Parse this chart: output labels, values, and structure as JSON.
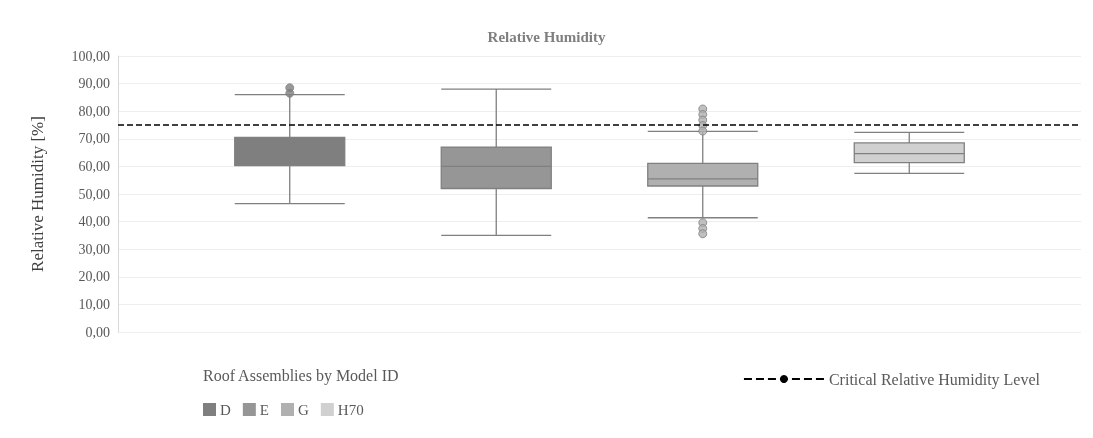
{
  "chart_data": {
    "type": "box",
    "title": "Relative Humidity",
    "ylabel": "Relative Humidity [%]",
    "legend_title": "Roof Assemblies by Model ID",
    "categories": [
      null
    ],
    "ylim": [
      0,
      100
    ],
    "yticks": [
      {
        "value": 0,
        "label": "0,00"
      },
      {
        "value": 10,
        "label": "10,00"
      },
      {
        "value": 20,
        "label": "20,00"
      },
      {
        "value": 30,
        "label": "30,00"
      },
      {
        "value": 40,
        "label": "40,00"
      },
      {
        "value": 50,
        "label": "50,00"
      },
      {
        "value": 60,
        "label": "60,00"
      },
      {
        "value": 70,
        "label": "70,00"
      },
      {
        "value": 80,
        "label": "80,00"
      },
      {
        "value": 90,
        "label": "90,00"
      },
      {
        "value": 100,
        "label": "100,00"
      }
    ],
    "grid": "y",
    "legend": "bottom",
    "series": [
      {
        "name": "D",
        "color": "#7f7f7f",
        "boxes": [
          {
            "low": 46.5,
            "q1": 60.3,
            "median": 66,
            "q3": 70.5,
            "high": 86,
            "outliers": [
              86.5,
              88.5
            ]
          }
        ]
      },
      {
        "name": "E",
        "color": "#969696",
        "boxes": [
          {
            "low": 35,
            "q1": 52,
            "median": 60,
            "q3": 67,
            "high": 88
          }
        ]
      },
      {
        "name": "G",
        "color": "#b0b0b0",
        "boxes": [
          {
            "low": 41.4,
            "q1": 52.9,
            "median": 55.5,
            "q3": 61.1,
            "high": 72.7,
            "outliers": [
              80.8,
              78.8,
              76.8,
              74.8,
              72.8,
              39.6,
              37.5,
              35.6
            ]
          }
        ]
      },
      {
        "name": "H70",
        "color": "#d0d0d0",
        "boxes": [
          {
            "low": 57.5,
            "q1": 61.4,
            "median": 64.6,
            "q3": 68.5,
            "high": 72.3
          }
        ]
      }
    ],
    "ref_lines": [
      {
        "axis": "y",
        "value": 75,
        "label": "Critical Relative Humidity Level",
        "color": "#000000",
        "line_style": "dashed"
      }
    ]
  }
}
